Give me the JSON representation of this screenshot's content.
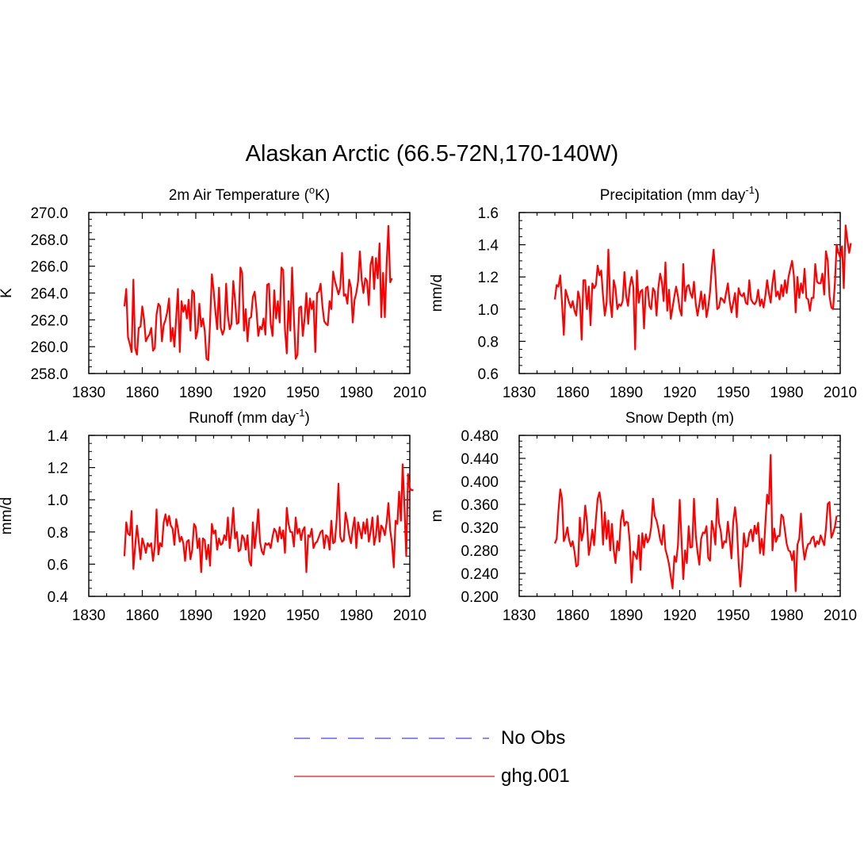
{
  "figure_title": "Alaskan Arctic (66.5-72N,170-140W)",
  "colors": {
    "model_line": "#ff0000",
    "obs_line": "#8a8aff",
    "legend_model": "#f07070",
    "axis": "#000000"
  },
  "legend": {
    "obs_label": "No Obs",
    "model_label": "ghg.001"
  },
  "chart_data": [
    {
      "type": "line",
      "title": "2m Air Temperature (°K)",
      "title_pre": "2m Air Temperature (",
      "title_sup": "o",
      "title_post": "K)",
      "xlabel": "",
      "ylabel": "K",
      "xlim": [
        1830,
        2010
      ],
      "ylim": [
        258.0,
        270.0
      ],
      "xticks": [
        "1830",
        "1860",
        "1890",
        "1920",
        "1950",
        "1980",
        "2010"
      ],
      "yticks": [
        "258.0",
        "260.0",
        "262.0",
        "264.0",
        "266.0",
        "268.0",
        "270.0"
      ],
      "x_start": 1850,
      "series": [
        {
          "name": "ghg.001",
          "values": [
            263.0,
            264.3,
            260.7,
            260.2,
            259.6,
            265.0,
            259.9,
            259.4,
            261.4,
            261.5,
            263.0,
            262.0,
            260.4,
            260.7,
            260.9,
            261.4,
            259.7,
            259.9,
            262.4,
            263.2,
            263.0,
            260.4,
            261.6,
            262.0,
            262.6,
            263.6,
            260.4,
            261.4,
            260.0,
            262.2,
            264.3,
            259.6,
            263.4,
            262.6,
            263.1,
            262.1,
            263.5,
            261.2,
            264.2,
            264.0,
            260.6,
            261.2,
            263.2,
            261.5,
            262.1,
            261.2,
            259.1,
            259.0,
            261.8,
            265.4,
            264.2,
            262.6,
            261.3,
            264.4,
            261.4,
            260.9,
            261.3,
            264.7,
            262.3,
            261.3,
            261.7,
            264.9,
            263.5,
            261.7,
            261.8,
            265.9,
            265.5,
            261.2,
            262.8,
            260.4,
            262.1,
            262.2,
            263.7,
            264.1,
            262.8,
            260.8,
            261.5,
            261.3,
            262.1,
            260.9,
            264.6,
            264.7,
            261.7,
            260.8,
            264.2,
            262.1,
            263.4,
            261.8,
            265.9,
            265.7,
            261.3,
            259.5,
            263.4,
            261.2,
            265.9,
            262.1,
            259.1,
            259.4,
            262.9,
            263.0,
            260.8,
            262.1,
            264.0,
            261.7,
            263.6,
            262.8,
            263.4,
            259.6,
            264.0,
            264.1,
            264.7,
            263.0,
            261.9,
            261.7,
            261.6,
            263.4,
            262.8,
            265.6,
            264.9,
            264.4,
            263.9,
            264.4,
            267.0,
            263.8,
            263.9,
            263.2,
            265.0,
            264.4,
            261.8,
            263.5,
            264.0,
            264.9,
            267.1,
            265.0,
            264.0,
            265.1,
            264.9,
            263.1,
            266.1,
            266.7,
            264.3,
            266.6,
            265.1,
            267.7,
            262.2,
            265.5,
            262.2,
            266.2,
            269.0,
            264.8,
            265.1
          ]
        }
      ]
    },
    {
      "type": "line",
      "title": "Precipitation (mm day-1)",
      "title_pre": "Precipitation (mm day",
      "title_sup": "-1",
      "title_post": ")",
      "xlabel": "",
      "ylabel": "mm/d",
      "xlim": [
        1830,
        2010
      ],
      "ylim": [
        0.6,
        1.6
      ],
      "xticks": [
        "1830",
        "1860",
        "1890",
        "1920",
        "1950",
        "1980",
        "2010"
      ],
      "yticks": [
        "0.6",
        "0.8",
        "1.0",
        "1.2",
        "1.4",
        "1.6"
      ],
      "x_start": 1850,
      "series": [
        {
          "name": "ghg.001",
          "values": [
            1.06,
            1.15,
            1.14,
            1.21,
            1.04,
            0.84,
            1.12,
            1.08,
            1.04,
            1.01,
            1.05,
            0.99,
            0.96,
            1.11,
            1.06,
            0.81,
            1.18,
            1.18,
            1.0,
            1.14,
            0.9,
            1.16,
            1.13,
            1.15,
            1.27,
            1.21,
            1.24,
            1.08,
            0.96,
            1.04,
            1.37,
            1.05,
            0.95,
            1.18,
            1.13,
            1.0,
            1.03,
            1.02,
            1.05,
            1.23,
            1.08,
            1.02,
            1.14,
            1.2,
            1.14,
            0.75,
            1.24,
            1.04,
            1.11,
            1.12,
            0.88,
            1.13,
            1.14,
            1.02,
            1.0,
            1.13,
            1.11,
            0.96,
            1.13,
            1.22,
            1.17,
            1.05,
            1.29,
            0.99,
            1.12,
            0.94,
            1.01,
            1.08,
            1.14,
            1.08,
            1.0,
            0.96,
            1.28,
            1.05,
            1.14,
            1.15,
            1.1,
            1.07,
            1.17,
            1.03,
            0.96,
            1.03,
            1.11,
            1.0,
            1.09,
            0.95,
            1.01,
            1.11,
            1.26,
            1.37,
            1.21,
            1.0,
            1.01,
            1.07,
            1.06,
            1.04,
            1.1,
            1.16,
            1.05,
            0.98,
            1.04,
            1.1,
            0.95,
            1.13,
            1.09,
            1.08,
            1.1,
            1.04,
            1.03,
            1.18,
            1.06,
            1.04,
            1.03,
            1.05,
            1.12,
            1.02,
            1.06,
            1.01,
            1.08,
            1.18,
            1.1,
            1.04,
            1.16,
            1.24,
            1.08,
            1.11,
            1.06,
            1.15,
            1.08,
            1.18,
            1.1,
            1.2,
            1.25,
            1.3,
            1.21,
            0.98,
            1.2,
            1.07,
            1.16,
            1.1,
            1.25,
            1.07,
            1.06,
            0.99,
            1.07,
            1.07,
            1.28,
            1.17,
            1.16,
            1.16,
            1.22,
            1.09,
            1.36,
            1.3,
            1.08,
            1.01,
            1.0,
            1.16,
            1.4,
            1.35,
            1.32,
            1.39,
            1.13,
            1.52,
            1.43,
            1.35,
            1.41
          ]
        }
      ]
    },
    {
      "type": "line",
      "title": "Runoff (mm day-1)",
      "title_pre": "Runoff (mm day",
      "title_sup": "-1",
      "title_post": ")",
      "xlabel": "",
      "ylabel": "mm/d",
      "xlim": [
        1830,
        2010
      ],
      "ylim": [
        0.4,
        1.4
      ],
      "xticks": [
        "1830",
        "1860",
        "1890",
        "1920",
        "1950",
        "1980",
        "2010"
      ],
      "yticks": [
        "0.4",
        "0.6",
        "0.8",
        "1.0",
        "1.2",
        "1.4"
      ],
      "x_start": 1850,
      "series": [
        {
          "name": "ghg.001",
          "values": [
            0.65,
            0.86,
            0.79,
            0.78,
            0.93,
            0.57,
            0.71,
            0.84,
            0.74,
            0.63,
            0.76,
            0.72,
            0.67,
            0.73,
            0.71,
            0.73,
            0.62,
            0.71,
            0.94,
            0.66,
            0.73,
            0.71,
            0.86,
            0.91,
            0.84,
            0.9,
            0.84,
            0.82,
            0.72,
            0.88,
            0.82,
            0.74,
            0.77,
            0.73,
            0.62,
            0.74,
            0.75,
            0.63,
            0.69,
            0.85,
            0.83,
            0.7,
            0.76,
            0.55,
            0.76,
            0.75,
            0.63,
            0.72,
            0.59,
            0.85,
            0.79,
            0.81,
            0.69,
            0.76,
            0.72,
            0.73,
            0.78,
            0.75,
            0.89,
            0.7,
            0.8,
            0.95,
            0.76,
            0.8,
            0.68,
            0.69,
            0.78,
            0.76,
            0.69,
            0.78,
            0.62,
            0.59,
            0.86,
            0.7,
            0.8,
            0.94,
            0.74,
            0.68,
            0.66,
            0.73,
            0.72,
            0.73,
            0.7,
            0.77,
            0.82,
            0.8,
            0.74,
            0.83,
            0.76,
            0.81,
            0.67,
            0.95,
            0.85,
            0.8,
            0.8,
            0.71,
            0.89,
            0.79,
            0.82,
            0.75,
            0.81,
            0.83,
            0.55,
            0.78,
            0.77,
            0.82,
            0.7,
            0.73,
            0.74,
            0.77,
            0.8,
            0.81,
            0.7,
            0.78,
            0.77,
            0.69,
            0.87,
            0.73,
            0.74,
            0.88,
            1.1,
            0.77,
            0.74,
            0.75,
            0.92,
            0.86,
            0.78,
            0.73,
            0.82,
            0.89,
            0.7,
            0.86,
            0.81,
            0.76,
            0.86,
            0.79,
            0.88,
            0.74,
            0.8,
            0.89,
            0.72,
            0.78,
            0.9,
            0.74,
            0.84,
            0.82,
            0.78,
            0.86,
            0.98,
            0.81,
            0.73,
            0.58,
            0.87,
            0.85,
            1.05,
            0.87,
            1.22,
            0.95,
            0.65,
            1.16,
            1.07,
            1.06,
            1.06
          ]
        }
      ]
    },
    {
      "type": "line",
      "title": "Snow Depth (m)",
      "title_pre": "Snow Depth (m)",
      "title_sup": "",
      "title_post": "",
      "xlabel": "",
      "ylabel": "m",
      "xlim": [
        1830,
        2010
      ],
      "ylim": [
        0.2,
        0.48
      ],
      "xticks": [
        "1830",
        "1860",
        "1890",
        "1920",
        "1950",
        "1980",
        "2010"
      ],
      "yticks": [
        "0.200",
        "0.240",
        "0.280",
        "0.320",
        "0.360",
        "0.400",
        "0.440",
        "0.480"
      ],
      "x_start": 1850,
      "series": [
        {
          "name": "ghg.001",
          "values": [
            0.292,
            0.3,
            0.348,
            0.386,
            0.37,
            0.296,
            0.305,
            0.32,
            0.298,
            0.287,
            0.296,
            0.278,
            0.252,
            0.255,
            0.337,
            0.297,
            0.312,
            0.358,
            0.33,
            0.272,
            0.29,
            0.316,
            0.289,
            0.334,
            0.37,
            0.381,
            0.36,
            0.29,
            0.346,
            0.3,
            0.332,
            0.28,
            0.326,
            0.281,
            0.258,
            0.296,
            0.28,
            0.332,
            0.35,
            0.323,
            0.33,
            0.328,
            0.294,
            0.224,
            0.278,
            0.272,
            0.265,
            0.306,
            0.246,
            0.31,
            0.285,
            0.308,
            0.294,
            0.301,
            0.32,
            0.37,
            0.34,
            0.332,
            0.318,
            0.299,
            0.29,
            0.324,
            0.282,
            0.27,
            0.256,
            0.234,
            0.214,
            0.27,
            0.26,
            0.289,
            0.368,
            0.298,
            0.23,
            0.28,
            0.258,
            0.322,
            0.285,
            0.286,
            0.37,
            0.306,
            0.277,
            0.255,
            0.3,
            0.311,
            0.31,
            0.322,
            0.267,
            0.262,
            0.331,
            0.315,
            0.29,
            0.37,
            0.328,
            0.314,
            0.284,
            0.296,
            0.294,
            0.33,
            0.3,
            0.266,
            0.329,
            0.355,
            0.326,
            0.259,
            0.217,
            0.256,
            0.31,
            0.286,
            0.288,
            0.31,
            0.316,
            0.296,
            0.323,
            0.309,
            0.328,
            0.275,
            0.3,
            0.272,
            0.324,
            0.377,
            0.361,
            0.446,
            0.28,
            0.318,
            0.295,
            0.305,
            0.305,
            0.342,
            0.338,
            0.314,
            0.291,
            0.28,
            0.278,
            0.263,
            0.279,
            0.209,
            0.29,
            0.3,
            0.344,
            0.29,
            0.264,
            0.281,
            0.291,
            0.292,
            0.301,
            0.304,
            0.286,
            0.296,
            0.291,
            0.306,
            0.298,
            0.289,
            0.318,
            0.361,
            0.364,
            0.302,
            0.31,
            0.321,
            0.34
          ]
        }
      ]
    }
  ]
}
